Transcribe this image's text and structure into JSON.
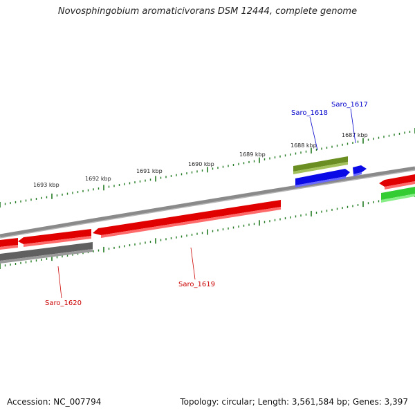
{
  "title": "Novosphingobium aromaticivorans DSM 12444, complete genome",
  "footer": {
    "accession": "Accession: NC_007794",
    "summary": "Topology: circular; Length: 3,561,584 bp; Genes: 3,397"
  },
  "colors": {
    "backbone": "#8a8a8a",
    "tick": "#1f7a1f",
    "red_gene": "#e00000",
    "gray_gene": "#666666",
    "olive_gene": "#6b8e23",
    "blue_gene": "#0a0ae6",
    "green_gene": "#33cc33",
    "red_label": "#cc0000",
    "blue_label": "#0000cc"
  },
  "kbp_labels": [
    "1687 kbp",
    "1688 kbp",
    "1689 kbp",
    "1690 kbp",
    "1691 kbp",
    "1692 kbp",
    "1693 kbp"
  ],
  "gene_labels": {
    "saro_1617": "Saro_1617",
    "saro_1618": "Saro_1618",
    "saro_1619": "Saro_1619",
    "saro_1620": "Saro_1620"
  }
}
